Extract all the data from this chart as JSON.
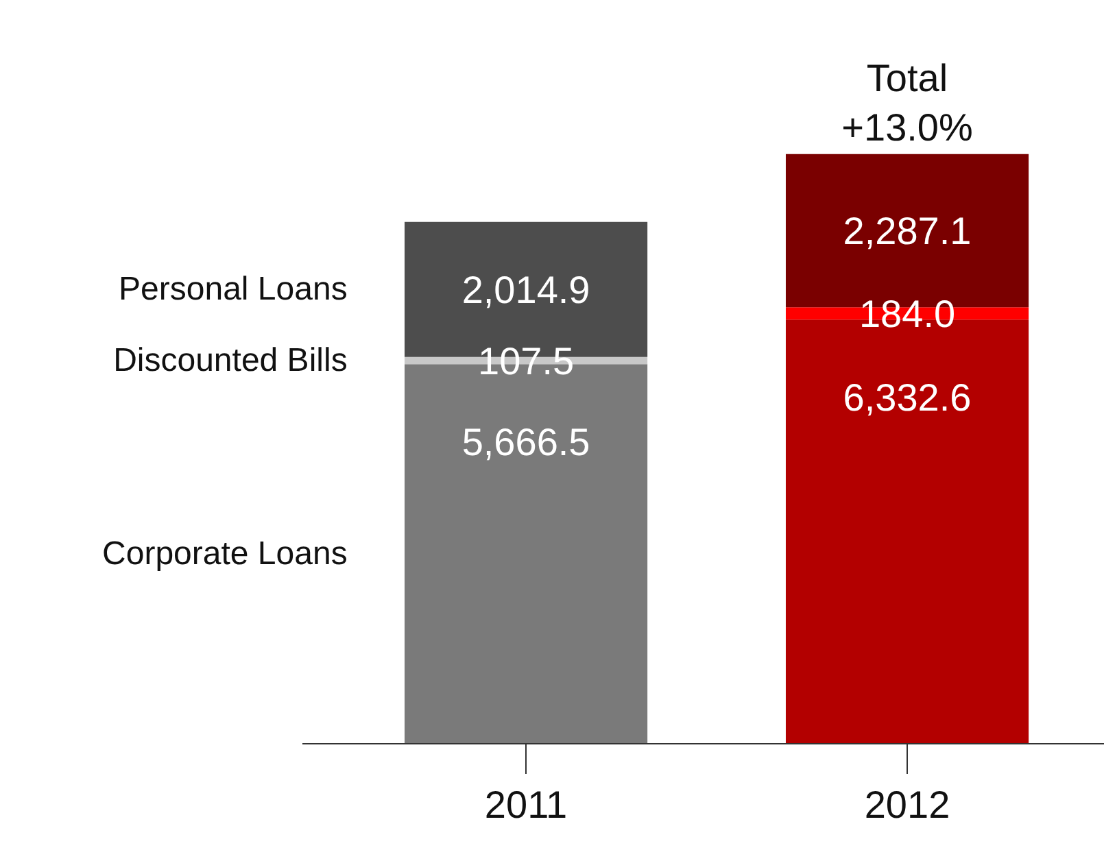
{
  "chart_data": {
    "type": "bar",
    "stacked": true,
    "categories": [
      "2011",
      "2012"
    ],
    "series": [
      {
        "name": "Corporate Loans",
        "colors": [
          "#7a7a7a",
          "#b30000"
        ],
        "values": [
          5666.5,
          6332.6
        ],
        "value_labels": [
          "5,666.5",
          "6,332.6"
        ]
      },
      {
        "name": "Discounted Bills",
        "colors": [
          "#c8c8c8",
          "#ff0000"
        ],
        "values": [
          107.5,
          184.0
        ],
        "value_labels": [
          "107.5",
          "184.0"
        ]
      },
      {
        "name": "Personal Loans",
        "colors": [
          "#4d4d4d",
          "#7a0000"
        ],
        "values": [
          2014.9,
          2287.1
        ],
        "value_labels": [
          "2,014.9",
          "2,287.1"
        ]
      }
    ],
    "annotations": [
      {
        "text": "Total\n+13.0%",
        "x": "2012",
        "y": 8803.7
      }
    ],
    "legend": "left",
    "grid": false
  }
}
